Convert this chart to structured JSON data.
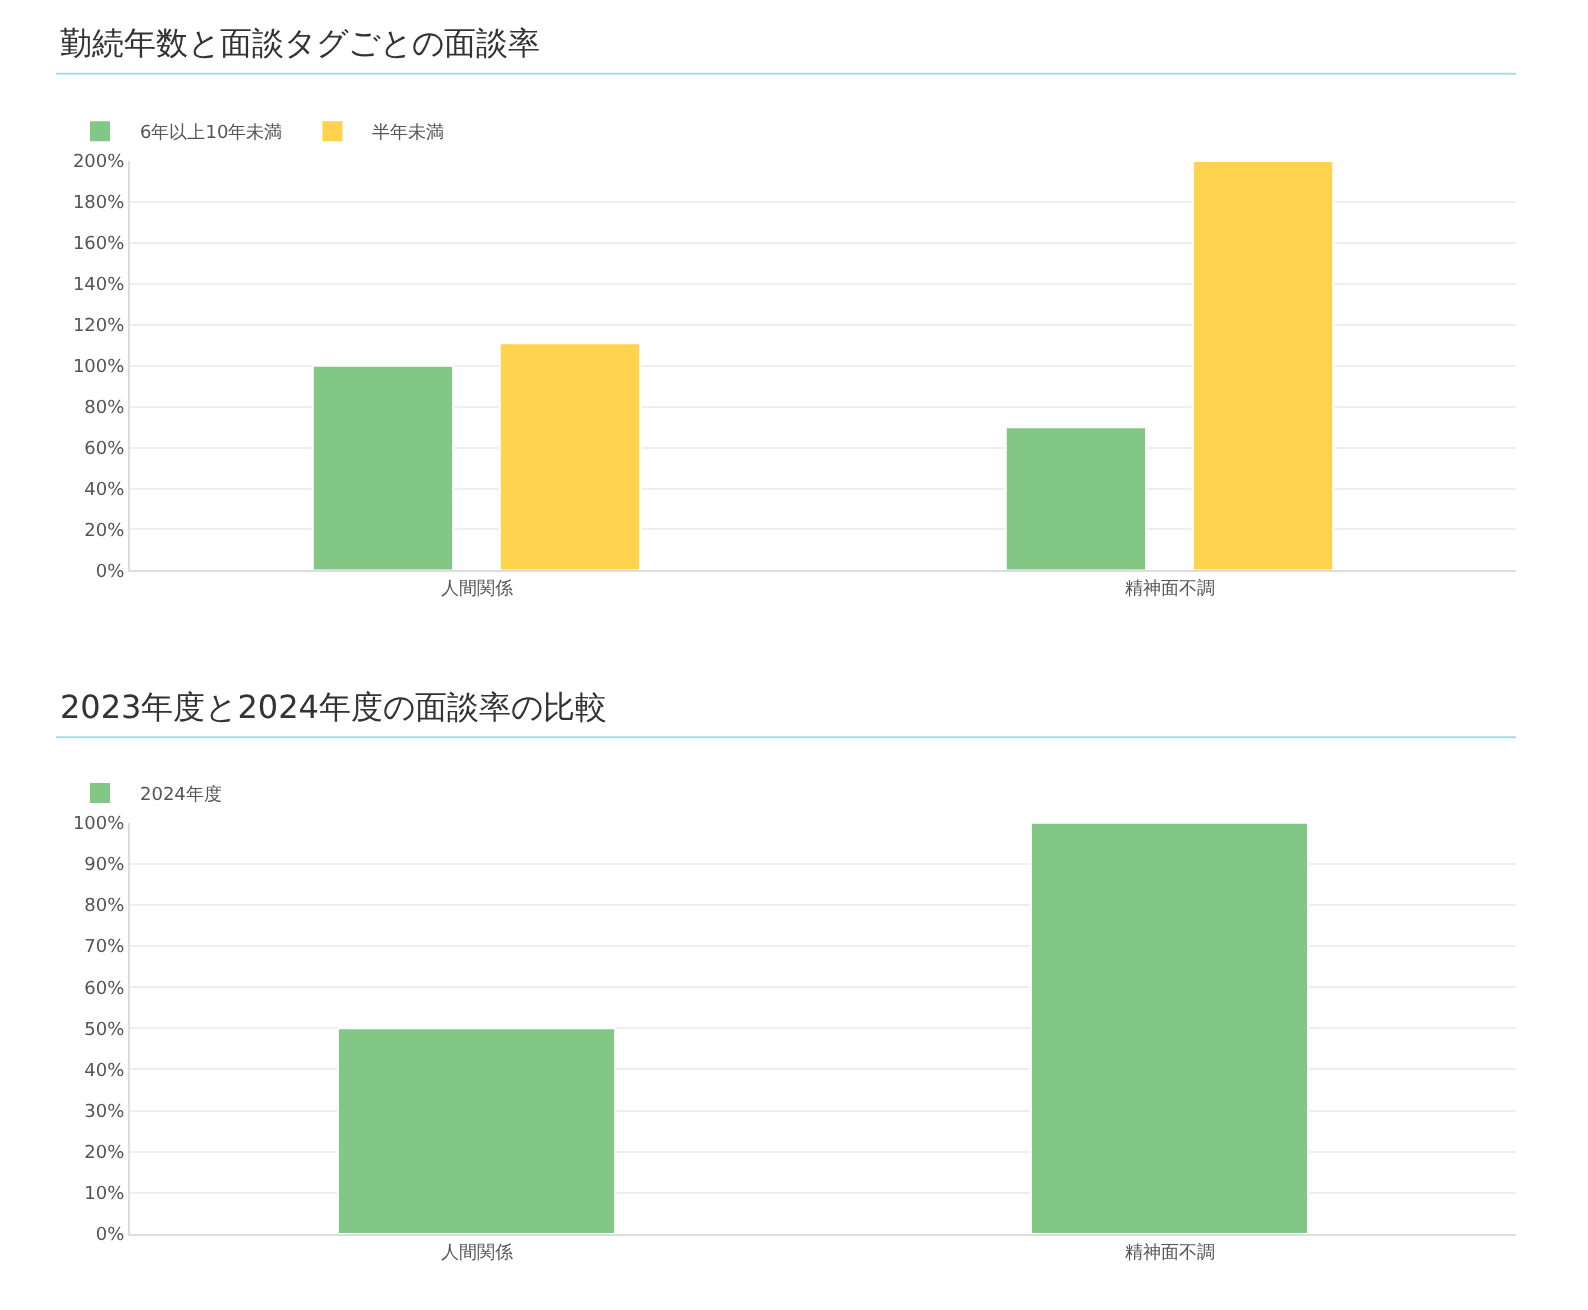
{
  "chart_data": [
    {
      "type": "bar",
      "title": "勤続年数と面談タグごとの面談率",
      "categories": [
        "人間関係",
        "精神面不調"
      ],
      "series": [
        {
          "name": "6年以上10年未満",
          "color": "#82c785",
          "values": [
            100,
            70
          ]
        },
        {
          "name": "半年未満",
          "color": "#ffd34e",
          "values": [
            111,
            200
          ]
        }
      ],
      "ylim": [
        0,
        200
      ],
      "yticks": [
        {
          "value": 0,
          "label": "0%"
        },
        {
          "value": 20,
          "label": "20%"
        },
        {
          "value": 40,
          "label": "40%"
        },
        {
          "value": 60,
          "label": "60%"
        },
        {
          "value": 80,
          "label": "80%"
        },
        {
          "value": 100,
          "label": "100%"
        },
        {
          "value": 120,
          "label": "120%"
        },
        {
          "value": 140,
          "label": "140%"
        },
        {
          "value": 160,
          "label": "160%"
        },
        {
          "value": 180,
          "label": "180%"
        },
        {
          "value": 200,
          "label": "200%"
        }
      ],
      "grid": "y",
      "legend": "top left"
    },
    {
      "type": "bar",
      "title": "2023年度と2024年度の面談率の比較",
      "categories": [
        "人間関係",
        "精神面不調"
      ],
      "series": [
        {
          "name": "2024年度",
          "color": "#82c785",
          "values": [
            50,
            100
          ]
        }
      ],
      "ylim": [
        0,
        100
      ],
      "yticks": [
        {
          "value": 0,
          "label": "0%"
        },
        {
          "value": 10,
          "label": "10%"
        },
        {
          "value": 20,
          "label": "20%"
        },
        {
          "value": 30,
          "label": "30%"
        },
        {
          "value": 40,
          "label": "40%"
        },
        {
          "value": 50,
          "label": "50%"
        },
        {
          "value": 60,
          "label": "60%"
        },
        {
          "value": 70,
          "label": "70%"
        },
        {
          "value": 80,
          "label": "80%"
        },
        {
          "value": 90,
          "label": "90%"
        },
        {
          "value": 100,
          "label": "100%"
        }
      ],
      "grid": "y",
      "legend": "top left"
    }
  ]
}
